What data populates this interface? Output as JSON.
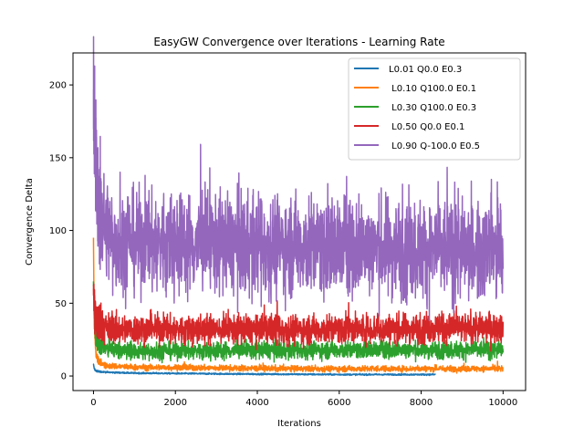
{
  "chart_data": {
    "type": "line",
    "title": "EasyGW Convergence over Iterations - Learning Rate",
    "xlabel": "Iterations",
    "ylabel": "Convergence Delta",
    "xlim": [
      -500,
      10550
    ],
    "ylim": [
      -10,
      222
    ],
    "xticks": [
      0,
      2000,
      4000,
      6000,
      8000,
      10000
    ],
    "yticks": [
      0,
      50,
      100,
      150,
      200
    ],
    "legend_position": "top-right",
    "grid": false,
    "series": [
      {
        "name": "L0.01 Q0.0 E0.3",
        "color": "#1f77b4",
        "x_max": 8350,
        "points": [
          [
            0,
            8
          ],
          [
            20,
            5
          ],
          [
            60,
            3.5
          ],
          [
            150,
            3
          ],
          [
            400,
            2.5
          ],
          [
            1000,
            2
          ],
          [
            3000,
            1.5
          ],
          [
            6000,
            1
          ],
          [
            8350,
            1
          ]
        ]
      },
      {
        "name": " L0.10 Q100.0 E0.1",
        "color": "#ff7f0e",
        "x_max": 10000,
        "points": [
          [
            0,
            95
          ],
          [
            10,
            60
          ],
          [
            30,
            30
          ],
          [
            60,
            15
          ],
          [
            120,
            10
          ],
          [
            300,
            7
          ],
          [
            1000,
            6
          ],
          [
            5000,
            5
          ],
          [
            10000,
            5
          ]
        ]
      },
      {
        "name": " L0.30 Q100.0 E0.3",
        "color": "#2ca02c",
        "x_max": 10000,
        "points": [
          [
            0,
            65
          ],
          [
            20,
            40
          ],
          [
            60,
            25
          ],
          [
            200,
            19
          ],
          [
            1000,
            17
          ],
          [
            5000,
            18
          ],
          [
            10000,
            18
          ]
        ]
      },
      {
        "name": " L0.50 Q0.0 E0.1",
        "color": "#d62728",
        "x_max": 10000,
        "points": [
          [
            0,
            60
          ],
          [
            30,
            45
          ],
          [
            100,
            35
          ],
          [
            500,
            32
          ],
          [
            5000,
            32
          ],
          [
            10000,
            33
          ]
        ]
      },
      {
        "name": " L0.90 Q-100.0 E0.5",
        "color": "#9467bd",
        "x_max": 10000,
        "points": [
          [
            0,
            197
          ],
          [
            20,
            170
          ],
          [
            60,
            140
          ],
          [
            150,
            110
          ],
          [
            500,
            92
          ],
          [
            5000,
            90
          ],
          [
            10000,
            85
          ]
        ]
      }
    ]
  }
}
